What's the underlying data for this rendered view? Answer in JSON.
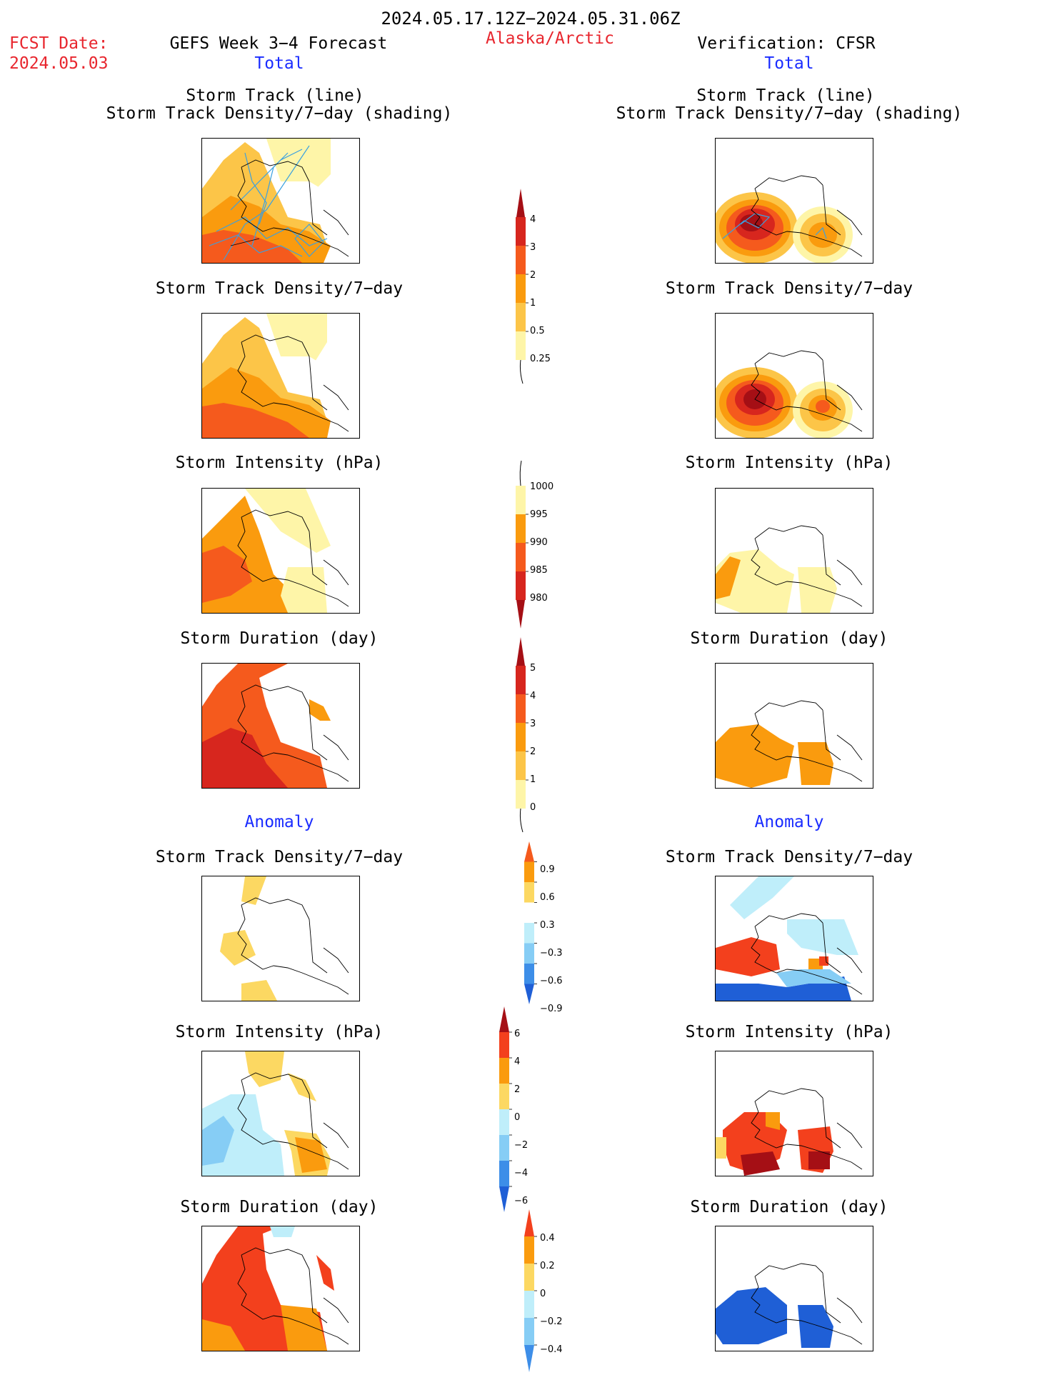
{
  "header": {
    "date_range": "2024.05.17.12Z−2024.05.31.06Z",
    "fcst_label": "FCST Date:",
    "fcst_date": "2024.05.03",
    "forecast_title": "GEFS Week 3−4 Forecast",
    "region": "Alaska/Arctic",
    "verification": "Verification: CFSR",
    "left_section": "Total",
    "right_section": "Total"
  },
  "panels": {
    "track_line_title": "Storm Track (line)",
    "track_shading_title": "Storm Track Density/7−day (shading)",
    "density_title": "Storm Track Density/7−day",
    "intensity_title": "Storm Intensity (hPa)",
    "duration_title": "Storm Duration (day)",
    "anomaly_label": "Anomaly"
  },
  "colorbars": {
    "density": {
      "ticks": [
        "4",
        "3",
        "2",
        "1",
        "0.5",
        "0.25"
      ],
      "colors": [
        "#a50f15",
        "#d7261e",
        "#f55a1d",
        "#fa9b0e",
        "#fcc548",
        "#fef5a8"
      ]
    },
    "intensity": {
      "ticks": [
        "1000",
        "995",
        "990",
        "985",
        "980"
      ],
      "colors": [
        "#fef5a8",
        "#fa9b0e",
        "#f55a1d",
        "#d7261e",
        "#a50f15"
      ]
    },
    "duration": {
      "ticks": [
        "5",
        "4",
        "3",
        "2",
        "1",
        "0"
      ],
      "colors": [
        "#a50f15",
        "#d7261e",
        "#f55a1d",
        "#fa9b0e",
        "#fcc548",
        "#fef5a8"
      ]
    },
    "anom_density": {
      "ticks": [
        "0.9",
        "0.6",
        "0.3",
        "−0.3",
        "−0.6",
        "−0.9"
      ],
      "colors": [
        "#f55a1d",
        "#fa9b0e",
        "#fcd862",
        "#ffffff",
        "#bfeefa",
        "#86cdf5",
        "#3d8ee8",
        "#1f5fd6"
      ]
    },
    "anom_intensity": {
      "ticks": [
        "6",
        "4",
        "2",
        "0",
        "−2",
        "−4",
        "−6"
      ],
      "colors": [
        "#a50f15",
        "#f3401d",
        "#fa9b0e",
        "#fcd862",
        "#bfeefa",
        "#86cdf5",
        "#3d8ee8",
        "#1f5fd6"
      ]
    },
    "anom_duration": {
      "ticks": [
        "0.4",
        "0.2",
        "0",
        "−0.2",
        "−0.4"
      ],
      "colors": [
        "#f3401d",
        "#fa9b0e",
        "#fcd862",
        "#bfeefa",
        "#86cdf5",
        "#3d8ee8"
      ]
    }
  },
  "colors": {
    "title_red": "#e8262e",
    "title_blue": "#1a2cff",
    "track_line": "#3aa0e0"
  }
}
